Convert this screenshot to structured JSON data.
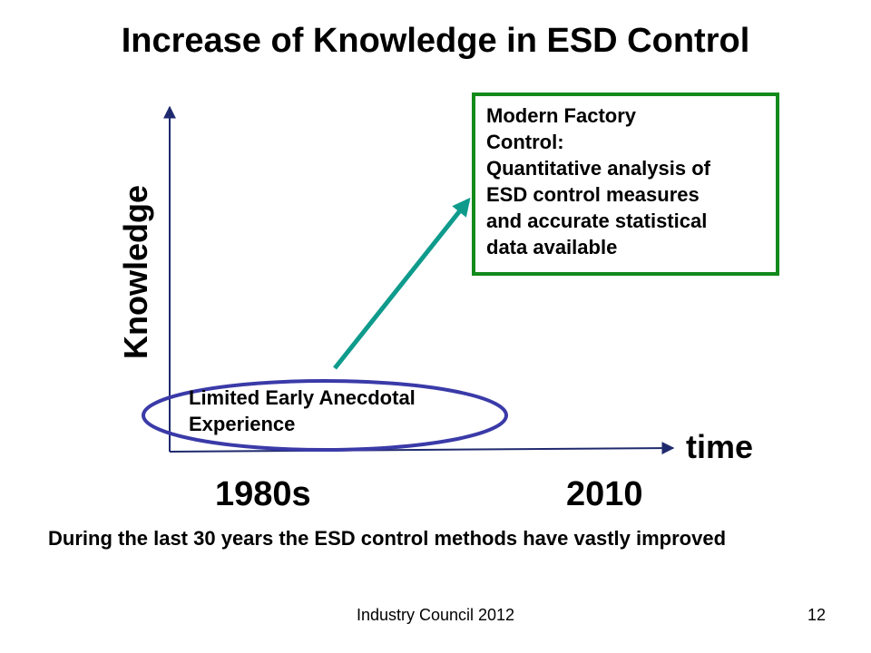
{
  "slide": {
    "title": "Increase of Knowledge in ESD Control",
    "y_axis_label": "Knowledge",
    "x_axis_label": "time",
    "x_ticks": [
      "1980s",
      "2010"
    ],
    "box_lines": [
      "Modern Factory",
      "Control:",
      "Quantitative analysis of",
      "ESD control measures",
      "and accurate statistical",
      "data available"
    ],
    "ellipse_lines": [
      "Limited Early Anecdotal",
      "Experience"
    ],
    "caption": "During the last 30 years the ESD control methods have vastly improved",
    "footer": "Industry Council 2012",
    "page_number": "12"
  },
  "colors": {
    "axis": "#1f2a6e",
    "ellipse": "#3a3aa8",
    "arrow": "#0e9b8c",
    "box_border": "#138a1c"
  }
}
